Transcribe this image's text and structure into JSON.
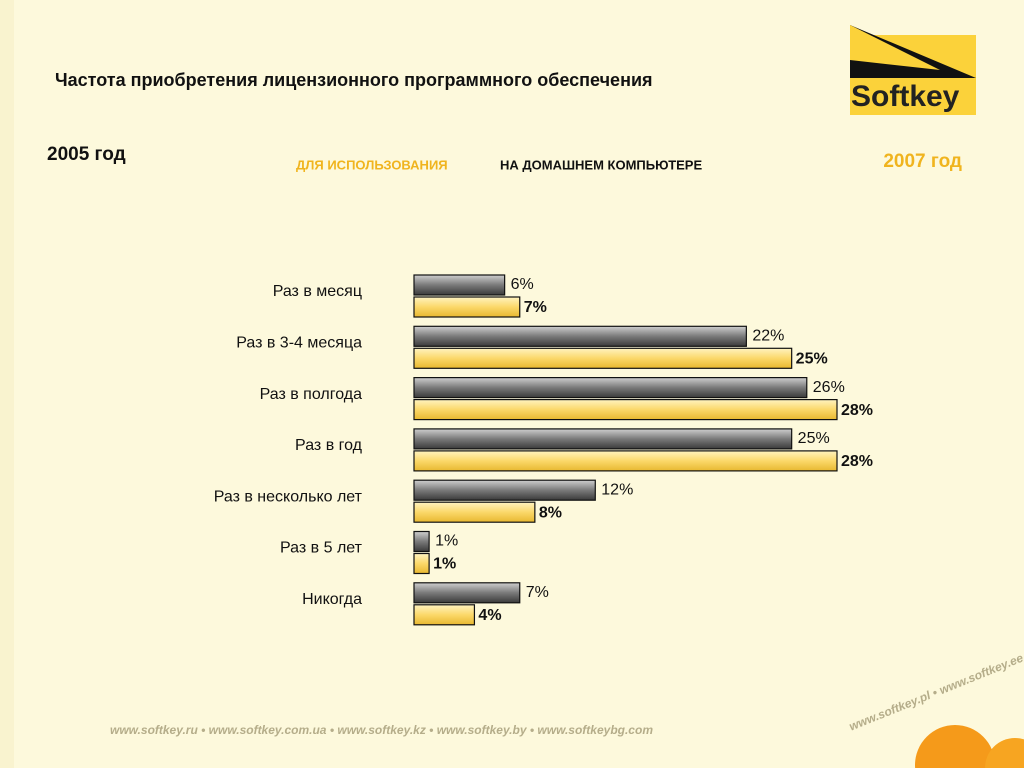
{
  "title": "Частота приобретения лицензионного программного обеспечения",
  "subtitle_highlight": "ДЛЯ ИСПОЛЬЗОВАНИЯ",
  "subtitle": "НА ДОМАШНЕМ КОМПЬЮТЕРЕ",
  "logo": "Softkey",
  "footer": [
    "www.softkey.ru",
    "www.softkey.com.ua",
    "www.softkey.kz",
    "www.softkey.by",
    "www.softkeybg.com",
    "www.softkey.pl",
    "www.softkey.ee"
  ],
  "chart_data": {
    "type": "hbar",
    "categories": [
      "Раз в месяц",
      "Раз в 3-4 месяца",
      "Раз в полгода",
      "Раз в год",
      "Раз в несколько лет",
      "Раз в 5 лет",
      "Никогда"
    ],
    "series": [
      {
        "name": "2005 год",
        "color": "#6e6e6e",
        "values": [
          6,
          22,
          26,
          25,
          12,
          1,
          7
        ],
        "value_labels": [
          "6%",
          "22%",
          "26%",
          "25%",
          "12%",
          "1%",
          "7%"
        ]
      },
      {
        "name": "2007 год",
        "color": "#fbd86a",
        "values": [
          7,
          25,
          28,
          28,
          8,
          1,
          4
        ],
        "value_labels": [
          "7%",
          "25%",
          "28%",
          "28%",
          "8%",
          "1%",
          "4%"
        ]
      }
    ]
  }
}
